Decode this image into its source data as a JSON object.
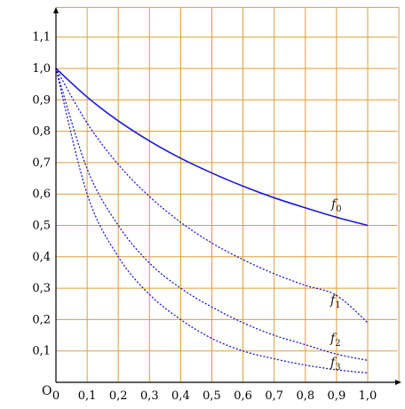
{
  "chart_data": {
    "type": "line",
    "title": "",
    "xlabel": "",
    "ylabel": "",
    "origin_label": "O",
    "xlim": [
      0,
      1.1
    ],
    "ylim": [
      0,
      1.2
    ],
    "grid": true,
    "colors": {
      "grid": "#e39b3a",
      "axis": "#000000",
      "curve": "#1a1adc"
    },
    "x_ticks": [
      "0",
      "0,1",
      "0,2",
      "0,3",
      "0,4",
      "0,5",
      "0,6",
      "0,7",
      "0,8",
      "0,9",
      "1,0"
    ],
    "y_ticks": [
      "0,1",
      "0,2",
      "0,3",
      "0,4",
      "0,5",
      "0,6",
      "0,7",
      "0,8",
      "0,9",
      "1,0",
      "1,1"
    ],
    "x": [
      0,
      0.1,
      0.2,
      0.3,
      0.4,
      0.5,
      0.6,
      0.7,
      0.8,
      0.9,
      1.0
    ],
    "series": [
      {
        "name": "f0",
        "label_main": "f",
        "label_sub": "0",
        "style": "solid",
        "values": [
          1.0,
          0.909,
          0.833,
          0.769,
          0.714,
          0.667,
          0.625,
          0.588,
          0.556,
          0.526,
          0.5
        ]
      },
      {
        "name": "f1",
        "label_main": "f",
        "label_sub": "1",
        "style": "dotted",
        "values": [
          1.0,
          0.826,
          0.694,
          0.592,
          0.51,
          0.444,
          0.391,
          0.346,
          0.309,
          0.277,
          0.19
        ]
      },
      {
        "name": "f2",
        "label_main": "f",
        "label_sub": "2",
        "style": "dotted",
        "values": [
          1.0,
          0.68,
          0.5,
          0.38,
          0.3,
          0.24,
          0.19,
          0.15,
          0.12,
          0.09,
          0.07
        ]
      },
      {
        "name": "f3",
        "label_main": "f",
        "label_sub": "3",
        "style": "dotted",
        "values": [
          1.0,
          0.6,
          0.4,
          0.28,
          0.2,
          0.14,
          0.1,
          0.075,
          0.055,
          0.04,
          0.03
        ]
      }
    ]
  }
}
